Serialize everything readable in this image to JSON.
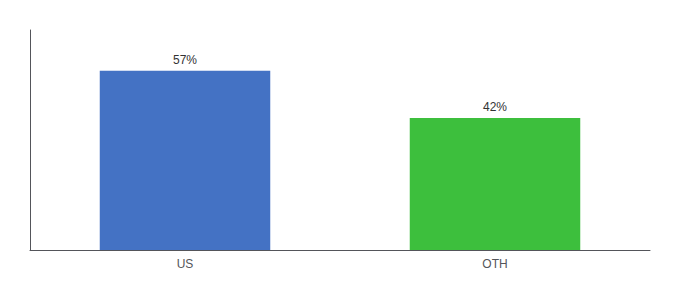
{
  "chart_data": {
    "type": "bar",
    "categories": [
      "US",
      "OTH"
    ],
    "values": [
      57,
      42
    ],
    "colors": [
      "#4472c4",
      "#3dbf3d"
    ],
    "data_labels": true,
    "value_labels": [
      "57%",
      "42%"
    ],
    "ylim": [
      0,
      70
    ],
    "grid": false,
    "tick_labels": "x"
  }
}
